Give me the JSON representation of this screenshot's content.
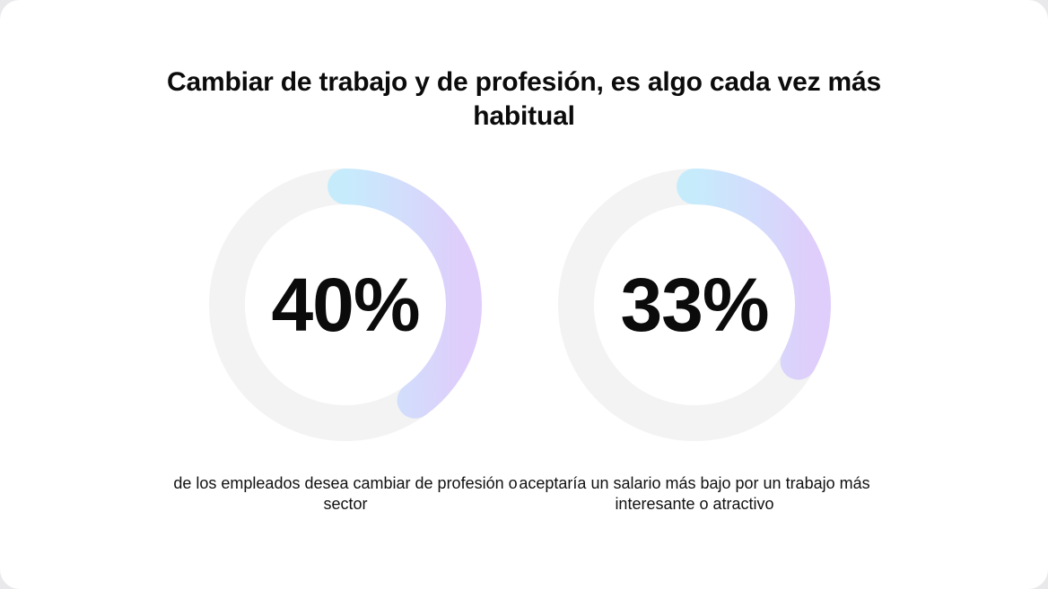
{
  "chart_data": {
    "type": "pie",
    "title": "Cambiar de trabajo y de profesión, es algo cada vez más habitual",
    "items": [
      {
        "value": 40,
        "label": "40%",
        "caption": "de los empleados desea cambiar de profesión o sector"
      },
      {
        "value": 33,
        "label": "33%",
        "caption": "aceptaría un salario más bajo por un trabajo más interesante o atractivo"
      }
    ],
    "colors": {
      "track": "#f3f3f3",
      "gradient_start": "#c6ecfc",
      "gradient_end": "#dfcdfb"
    }
  }
}
